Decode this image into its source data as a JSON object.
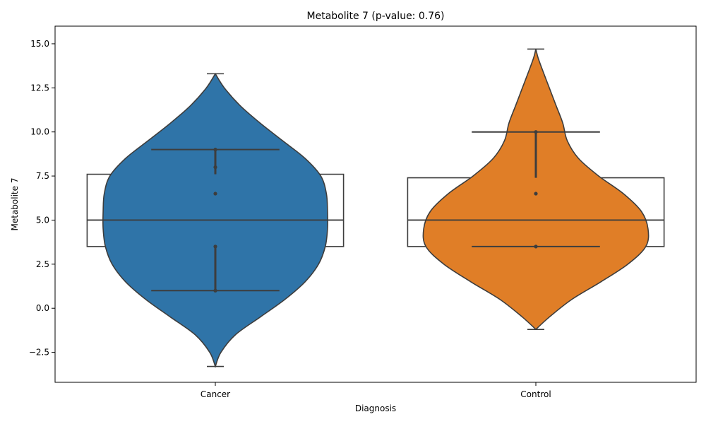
{
  "chart_data": {
    "type": "violin",
    "title": "Metabolite 7 (p-value: 0.76)",
    "xlabel": "Diagnosis",
    "ylabel": "Metabolite 7",
    "categories": [
      "Cancer",
      "Control"
    ],
    "ylim": [
      -4.2,
      16.0
    ],
    "yticks": [
      -2.5,
      0.0,
      2.5,
      5.0,
      7.5,
      10.0,
      12.5,
      15.0
    ],
    "ytick_labels": [
      "−2.5",
      "0.0",
      "2.5",
      "5.0",
      "7.5",
      "10.0",
      "12.5",
      "15.0"
    ],
    "grid": false,
    "groups": [
      {
        "name": "Cancer",
        "color": "#2f74a8",
        "points": [
          1.0,
          3.5,
          6.5,
          8.0,
          9.0
        ],
        "box": {
          "q1": 3.5,
          "median": 5.0,
          "q3": 7.6,
          "whisker_low": 1.0,
          "whisker_high": 9.0
        },
        "ci": {
          "low": 1.0,
          "high": 3.5,
          "upper_low": 7.6,
          "upper_high": 9.0
        },
        "violin": {
          "y": [
            -3.3,
            -2.5,
            -1.5,
            -0.5,
            0.5,
            1.5,
            2.5,
            3.5,
            4.5,
            5.5,
            6.5,
            7.5,
            8.5,
            9.5,
            10.5,
            11.5,
            12.5,
            13.3
          ],
          "w": [
            0.0,
            0.05,
            0.18,
            0.4,
            0.62,
            0.8,
            0.92,
            0.98,
            1.0,
            1.0,
            0.99,
            0.94,
            0.8,
            0.6,
            0.4,
            0.22,
            0.08,
            0.0
          ]
        }
      },
      {
        "name": "Control",
        "color": "#e07e27",
        "points": [
          3.5,
          6.5,
          10.0
        ],
        "box": {
          "q1": 3.5,
          "median": 5.0,
          "q3": 7.4,
          "whisker_low": 3.5,
          "whisker_high": 10.0
        },
        "ci": {
          "low": 3.5,
          "high": 3.5,
          "upper_low": 7.4,
          "upper_high": 10.0
        },
        "violin": {
          "y": [
            -1.2,
            -0.5,
            0.5,
            1.5,
            2.5,
            3.5,
            4.5,
            5.5,
            6.5,
            7.5,
            8.5,
            9.5,
            10.5,
            11.5,
            12.5,
            13.5,
            14.2,
            14.7
          ],
          "w": [
            0.0,
            0.12,
            0.32,
            0.58,
            0.82,
            0.98,
            1.0,
            0.94,
            0.78,
            0.56,
            0.38,
            0.28,
            0.24,
            0.18,
            0.12,
            0.06,
            0.02,
            0.0
          ]
        }
      }
    ]
  }
}
